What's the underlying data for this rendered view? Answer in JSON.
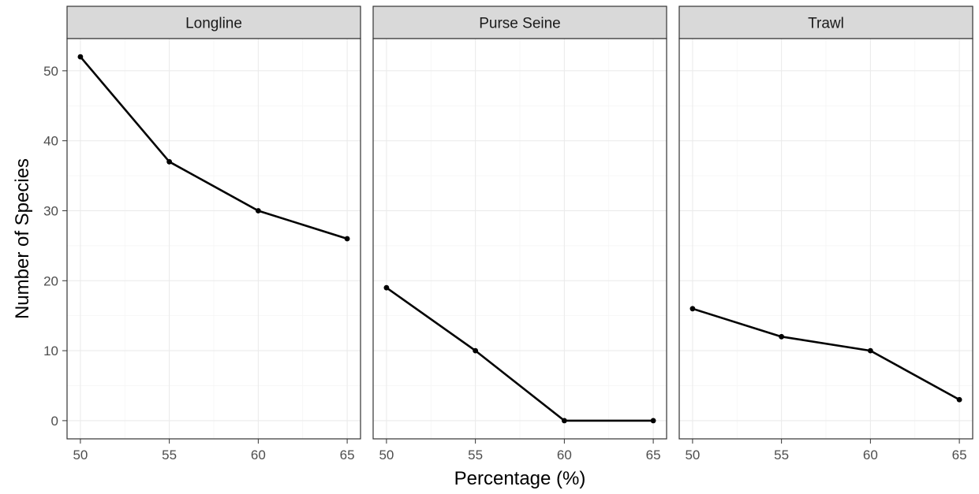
{
  "chart_data": {
    "type": "line",
    "xlabel": "Percentage (%)",
    "ylabel": "Number of Species",
    "xlim": [
      49.25,
      65.75
    ],
    "ylim": [
      -2.6,
      54.6
    ],
    "x_ticks": [
      50,
      55,
      60,
      65
    ],
    "y_ticks": [
      0,
      10,
      20,
      30,
      40,
      50
    ],
    "grid": true,
    "facets": [
      {
        "label": "Longline",
        "x": [
          50,
          55,
          60,
          65
        ],
        "values": [
          52,
          37,
          30,
          26
        ]
      },
      {
        "label": "Purse Seine",
        "x": [
          50,
          55,
          60,
          65
        ],
        "values": [
          19,
          10,
          0,
          0
        ]
      },
      {
        "label": "Trawl",
        "x": [
          50,
          55,
          60,
          65
        ],
        "values": [
          16,
          12,
          10,
          3
        ]
      }
    ],
    "colors": {
      "line": "#000000",
      "strip": "#d9d9d9",
      "grid": "#ebebeb"
    }
  }
}
